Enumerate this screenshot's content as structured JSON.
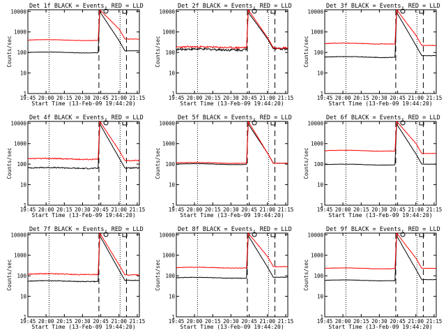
{
  "layout": "3x3 grid of detector count-rate plots",
  "chart_data": [
    {
      "type": "line",
      "panel": 1,
      "title": "Det 1f BLACK = Events, RED = LLD",
      "xlabel": "Start Time (13-Feb-09 19:44:20)",
      "ylabel": "Counts/sec",
      "x_ticks": [
        "19:45",
        "20:00",
        "20:15",
        "20:30",
        "20:45",
        "21:00",
        "21:15"
      ],
      "y_ticks": [
        "1",
        "10",
        "100",
        "1000",
        "10000"
      ],
      "ylim": [
        1,
        12000
      ],
      "series": [
        {
          "name": "Events",
          "color": "#000000",
          "base": 100,
          "noise": 0.02,
          "peak": 10000,
          "tail": 120
        },
        {
          "name": "LLD",
          "color": "#ff0000",
          "base": 400,
          "noise": 0.02,
          "peak": 12000,
          "tail": 450
        }
      ]
    },
    {
      "type": "line",
      "panel": 2,
      "title": "Det 2f BLACK = Events, RED = LLD",
      "xlabel": "Start Time (13-Feb-09 19:44:20)",
      "ylabel": "Counts/sec",
      "x_ticks": [
        "19:45",
        "20:00",
        "20:15",
        "20:30",
        "20:45",
        "21:00",
        "21:15"
      ],
      "y_ticks": [
        "1",
        "10",
        "100",
        "1000",
        "10000"
      ],
      "ylim": [
        1,
        12000
      ],
      "series": [
        {
          "name": "Events",
          "color": "#000000",
          "base": 140,
          "noise": 0.12,
          "peak": 9000,
          "tail": 150
        },
        {
          "name": "LLD",
          "color": "#ff0000",
          "base": 180,
          "noise": 0.1,
          "peak": 12000,
          "tail": 170
        }
      ]
    },
    {
      "type": "line",
      "panel": 3,
      "title": "Det 3f BLACK = Events, RED = LLD",
      "xlabel": "Start Time (13-Feb-09 19:44:20)",
      "ylabel": "Counts/sec",
      "x_ticks": [
        "19:45",
        "20:00",
        "20:15",
        "20:30",
        "20:45",
        "21:00",
        "21:15"
      ],
      "y_ticks": [
        "1",
        "10",
        "100",
        "1000",
        "10000"
      ],
      "ylim": [
        1,
        12000
      ],
      "series": [
        {
          "name": "Events",
          "color": "#000000",
          "base": 60,
          "noise": 0.03,
          "peak": 9000,
          "tail": 70
        },
        {
          "name": "LLD",
          "color": "#ff0000",
          "base": 270,
          "noise": 0.03,
          "peak": 12000,
          "tail": 220
        }
      ]
    },
    {
      "type": "line",
      "panel": 4,
      "title": "Det 4f BLACK = Events, RED = LLD",
      "xlabel": "Start Time (13-Feb-09 19:44:20)",
      "ylabel": "Counts/sec",
      "x_ticks": [
        "19:45",
        "20:00",
        "20:15",
        "20:30",
        "20:45",
        "21:00",
        "21:15"
      ],
      "y_ticks": [
        "1",
        "10",
        "100",
        "1000",
        "10000"
      ],
      "ylim": [
        1,
        12000
      ],
      "series": [
        {
          "name": "Events",
          "color": "#000000",
          "base": 65,
          "noise": 0.06,
          "peak": 9000,
          "tail": 65
        },
        {
          "name": "LLD",
          "color": "#ff0000",
          "base": 180,
          "noise": 0.06,
          "peak": 12000,
          "tail": 150
        }
      ]
    },
    {
      "type": "line",
      "panel": 5,
      "title": "Det 5f BLACK = Events, RED = LLD",
      "xlabel": "Start Time (13-Feb-09 19:44:20)",
      "ylabel": "Counts/sec",
      "x_ticks": [
        "19:45",
        "20:00",
        "20:15",
        "20:30",
        "20:45",
        "21:00",
        "21:15"
      ],
      "y_ticks": [
        "1",
        "10",
        "100",
        "1000",
        "10000"
      ],
      "ylim": [
        1,
        12000
      ],
      "series": [
        {
          "name": "Events",
          "color": "#000000",
          "base": 100,
          "noise": 0.02,
          "peak": 9000,
          "tail": 110
        },
        {
          "name": "LLD",
          "color": "#ff0000",
          "base": 115,
          "noise": 0.02,
          "peak": 12000,
          "tail": 110
        }
      ]
    },
    {
      "type": "line",
      "panel": 6,
      "title": "Det 6f BLACK = Events, RED = LLD",
      "xlabel": "Start Time (13-Feb-09 19:44:20)",
      "ylabel": "Counts/sec",
      "x_ticks": [
        "19:45",
        "20:00",
        "20:15",
        "20:30",
        "20:45",
        "21:00",
        "21:15"
      ],
      "y_ticks": [
        "1",
        "10",
        "100",
        "1000",
        "10000"
      ],
      "ylim": [
        1,
        12000
      ],
      "series": [
        {
          "name": "Events",
          "color": "#000000",
          "base": 95,
          "noise": 0.02,
          "peak": 9000,
          "tail": 100
        },
        {
          "name": "LLD",
          "color": "#ff0000",
          "base": 450,
          "noise": 0.02,
          "peak": 12000,
          "tail": 330
        }
      ]
    },
    {
      "type": "line",
      "panel": 7,
      "title": "Det 7f BLACK = Events, RED = LLD",
      "xlabel": "Start Time (13-Feb-09 19:44:20)",
      "ylabel": "Counts/sec",
      "x_ticks": [
        "19:45",
        "20:00",
        "20:15",
        "20:30",
        "20:45",
        "21:00",
        "21:15"
      ],
      "y_ticks": [
        "1",
        "10",
        "100",
        "1000",
        "10000"
      ],
      "ylim": [
        1,
        12000
      ],
      "series": [
        {
          "name": "Events",
          "color": "#000000",
          "base": 55,
          "noise": 0.04,
          "peak": 9000,
          "tail": 60
        },
        {
          "name": "LLD",
          "color": "#ff0000",
          "base": 120,
          "noise": 0.05,
          "peak": 12000,
          "tail": 110
        }
      ]
    },
    {
      "type": "line",
      "panel": 8,
      "title": "Det 8f BLACK = Events, RED = LLD",
      "xlabel": "Start Time (13-Feb-09 19:44:20)",
      "ylabel": "Counts/sec",
      "x_ticks": [
        "19:45",
        "20:00",
        "20:15",
        "20:30",
        "20:45",
        "21:00",
        "21:15"
      ],
      "y_ticks": [
        "1",
        "10",
        "100",
        "1000",
        "10000"
      ],
      "ylim": [
        1,
        12000
      ],
      "series": [
        {
          "name": "Events",
          "color": "#000000",
          "base": 80,
          "noise": 0.03,
          "peak": 9000,
          "tail": 85
        },
        {
          "name": "LLD",
          "color": "#ff0000",
          "base": 250,
          "noise": 0.03,
          "peak": 12000,
          "tail": 280
        }
      ]
    },
    {
      "type": "line",
      "panel": 9,
      "title": "Det 9f BLACK = Events, RED = LLD",
      "xlabel": "Start Time (13-Feb-09 19:44:20)",
      "ylabel": "Counts/sec",
      "x_ticks": [
        "19:45",
        "20:00",
        "20:15",
        "20:30",
        "20:45",
        "21:00",
        "21:15"
      ],
      "y_ticks": [
        "1",
        "10",
        "100",
        "1000",
        "10000"
      ],
      "ylim": [
        1,
        12000
      ],
      "series": [
        {
          "name": "Events",
          "color": "#000000",
          "base": 60,
          "noise": 0.02,
          "peak": 9000,
          "tail": 65
        },
        {
          "name": "LLD",
          "color": "#ff0000",
          "base": 230,
          "noise": 0.02,
          "peak": 12000,
          "tail": 230
        }
      ]
    }
  ]
}
